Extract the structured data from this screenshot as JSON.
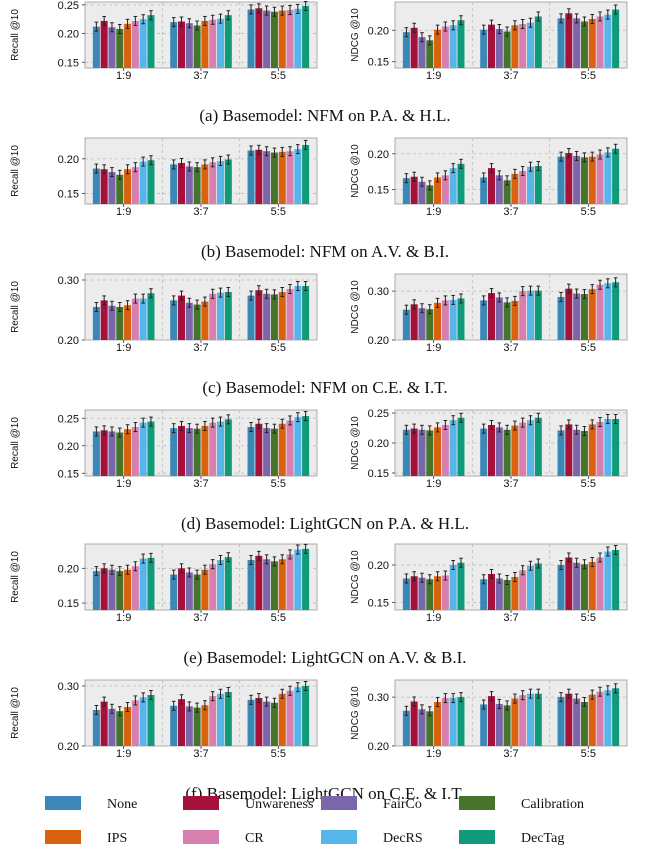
{
  "colors": {
    "None": "#3a88b8",
    "Unwareness": "#a6113b",
    "FairCo": "#7a66aa",
    "Calibration": "#45742a",
    "IPS": "#d9620f",
    "CR": "#d77fae",
    "DecRS": "#57b6e9",
    "DecTag": "#109a7a"
  },
  "legend": [
    "None",
    "Unwareness",
    "FairCo",
    "Calibration",
    "IPS",
    "CR",
    "DecRS",
    "DecTag"
  ],
  "chart_data": [
    {
      "type": "bar",
      "caption": "(a) Basemodel: NFM on P.A. & H.L.",
      "categories": [
        "1:9",
        "3:7",
        "5:5"
      ],
      "left": {
        "ylabel": "Recall @10",
        "ylim": [
          0.14,
          0.255
        ],
        "ticks": [
          0.15,
          0.2,
          0.25
        ],
        "series": [
          [
            0.212,
            0.222,
            0.211,
            0.208,
            0.217,
            0.222,
            0.225,
            0.232
          ],
          [
            0.22,
            0.221,
            0.218,
            0.214,
            0.222,
            0.224,
            0.226,
            0.232
          ],
          [
            0.242,
            0.244,
            0.24,
            0.238,
            0.24,
            0.241,
            0.243,
            0.248
          ]
        ]
      },
      "right": {
        "ylabel": "NDCG @10",
        "ylim": [
          0.14,
          0.245
        ],
        "ticks": [
          0.15,
          0.2
        ],
        "series": [
          [
            0.197,
            0.204,
            0.189,
            0.184,
            0.201,
            0.206,
            0.208,
            0.216
          ],
          [
            0.201,
            0.209,
            0.202,
            0.198,
            0.208,
            0.21,
            0.212,
            0.222
          ],
          [
            0.219,
            0.227,
            0.219,
            0.214,
            0.218,
            0.222,
            0.225,
            0.233
          ]
        ]
      }
    },
    {
      "type": "bar",
      "caption": "(b) Basemodel: NFM on A.V. & B.I.",
      "categories": [
        "1:9",
        "3:7",
        "5:5"
      ],
      "left": {
        "ylabel": "Recall @10",
        "ylim": [
          0.135,
          0.23
        ],
        "ticks": [
          0.15,
          0.2
        ],
        "series": [
          [
            0.186,
            0.185,
            0.181,
            0.177,
            0.185,
            0.188,
            0.196,
            0.198
          ],
          [
            0.192,
            0.194,
            0.189,
            0.188,
            0.192,
            0.195,
            0.197,
            0.199
          ],
          [
            0.212,
            0.213,
            0.211,
            0.209,
            0.21,
            0.211,
            0.214,
            0.22
          ]
        ]
      },
      "right": {
        "ylabel": "NDCG @10",
        "ylim": [
          0.13,
          0.222
        ],
        "ticks": [
          0.15,
          0.2
        ],
        "series": [
          [
            0.166,
            0.168,
            0.161,
            0.156,
            0.167,
            0.17,
            0.18,
            0.186
          ],
          [
            0.167,
            0.18,
            0.17,
            0.163,
            0.172,
            0.176,
            0.182,
            0.183
          ],
          [
            0.196,
            0.201,
            0.197,
            0.195,
            0.196,
            0.199,
            0.202,
            0.207
          ]
        ]
      }
    },
    {
      "type": "bar",
      "caption": "(c) Basemodel: NFM on C.E. & I.T.",
      "categories": [
        "1:9",
        "3:7",
        "5:5"
      ],
      "left": {
        "ylabel": "Recall @10",
        "ylim": [
          0.2,
          0.31
        ],
        "ticks": [
          0.2,
          0.3
        ],
        "series": [
          [
            0.255,
            0.266,
            0.257,
            0.255,
            0.258,
            0.269,
            0.269,
            0.278
          ],
          [
            0.266,
            0.274,
            0.262,
            0.259,
            0.264,
            0.277,
            0.279,
            0.28
          ],
          [
            0.274,
            0.283,
            0.277,
            0.276,
            0.28,
            0.285,
            0.29,
            0.29
          ]
        ]
      },
      "right": {
        "ylabel": "NDCG @10",
        "ylim": [
          0.2,
          0.335
        ],
        "ticks": [
          0.2,
          0.3
        ],
        "series": [
          [
            0.262,
            0.273,
            0.265,
            0.263,
            0.276,
            0.281,
            0.282,
            0.285
          ],
          [
            0.281,
            0.296,
            0.287,
            0.277,
            0.28,
            0.3,
            0.301,
            0.301
          ],
          [
            0.288,
            0.305,
            0.295,
            0.294,
            0.304,
            0.313,
            0.316,
            0.318
          ]
        ]
      }
    },
    {
      "type": "bar",
      "caption": "(d) Basemodel: LightGCN on P.A. & H.L.",
      "categories": [
        "1:9",
        "3:7",
        "5:5"
      ],
      "left": {
        "ylabel": "Recall @10",
        "ylim": [
          0.145,
          0.265
        ],
        "ticks": [
          0.15,
          0.2,
          0.25
        ],
        "series": [
          [
            0.226,
            0.228,
            0.226,
            0.224,
            0.23,
            0.234,
            0.242,
            0.244
          ],
          [
            0.232,
            0.236,
            0.232,
            0.231,
            0.236,
            0.242,
            0.244,
            0.248
          ],
          [
            0.234,
            0.24,
            0.232,
            0.231,
            0.24,
            0.246,
            0.252,
            0.254
          ]
        ]
      },
      "right": {
        "ylabel": "NDCG @10",
        "ylim": [
          0.145,
          0.255
        ],
        "ticks": [
          0.15,
          0.2,
          0.25
        ],
        "series": [
          [
            0.222,
            0.224,
            0.222,
            0.221,
            0.226,
            0.23,
            0.238,
            0.242
          ],
          [
            0.224,
            0.23,
            0.226,
            0.222,
            0.229,
            0.234,
            0.238,
            0.242
          ],
          [
            0.221,
            0.231,
            0.222,
            0.22,
            0.231,
            0.235,
            0.24,
            0.24
          ]
        ]
      }
    },
    {
      "type": "bar",
      "caption": "(e) Basemodel: LightGCN on A.V. & B.I.",
      "categories": [
        "1:9",
        "3:7",
        "5:5"
      ],
      "left": {
        "ylabel": "Recall @10",
        "ylim": [
          0.14,
          0.235
        ],
        "ticks": [
          0.15,
          0.2
        ],
        "series": [
          [
            0.196,
            0.2,
            0.198,
            0.196,
            0.198,
            0.203,
            0.214,
            0.215
          ],
          [
            0.191,
            0.2,
            0.194,
            0.191,
            0.198,
            0.206,
            0.212,
            0.216
          ],
          [
            0.212,
            0.218,
            0.213,
            0.21,
            0.213,
            0.22,
            0.227,
            0.228
          ]
        ]
      },
      "right": {
        "ylabel": "NDCG @10",
        "ylim": [
          0.14,
          0.228
        ],
        "ticks": [
          0.15,
          0.2
        ],
        "series": [
          [
            0.182,
            0.185,
            0.183,
            0.181,
            0.185,
            0.186,
            0.2,
            0.203
          ],
          [
            0.181,
            0.188,
            0.182,
            0.18,
            0.184,
            0.193,
            0.199,
            0.202
          ],
          [
            0.2,
            0.21,
            0.203,
            0.201,
            0.204,
            0.21,
            0.218,
            0.22
          ]
        ]
      }
    },
    {
      "type": "bar",
      "caption": "(f) Basemodel: LightGCN on C.E. & I.T.",
      "categories": [
        "1:9",
        "3:7",
        "5:5"
      ],
      "left": {
        "ylabel": "Recall @10",
        "ylim": [
          0.2,
          0.31
        ],
        "ticks": [
          0.2,
          0.3
        ],
        "series": [
          [
            0.26,
            0.274,
            0.262,
            0.258,
            0.265,
            0.276,
            0.281,
            0.285
          ],
          [
            0.267,
            0.278,
            0.266,
            0.264,
            0.268,
            0.283,
            0.287,
            0.29
          ],
          [
            0.277,
            0.28,
            0.274,
            0.272,
            0.287,
            0.292,
            0.298,
            0.3
          ]
        ]
      },
      "right": {
        "ylabel": "NDCG @10",
        "ylim": [
          0.2,
          0.335
        ],
        "ticks": [
          0.2,
          0.3
        ],
        "series": [
          [
            0.272,
            0.291,
            0.275,
            0.271,
            0.29,
            0.298,
            0.298,
            0.3
          ],
          [
            0.285,
            0.302,
            0.286,
            0.283,
            0.297,
            0.304,
            0.307,
            0.307
          ],
          [
            0.3,
            0.307,
            0.297,
            0.29,
            0.305,
            0.311,
            0.314,
            0.318
          ]
        ]
      }
    }
  ]
}
